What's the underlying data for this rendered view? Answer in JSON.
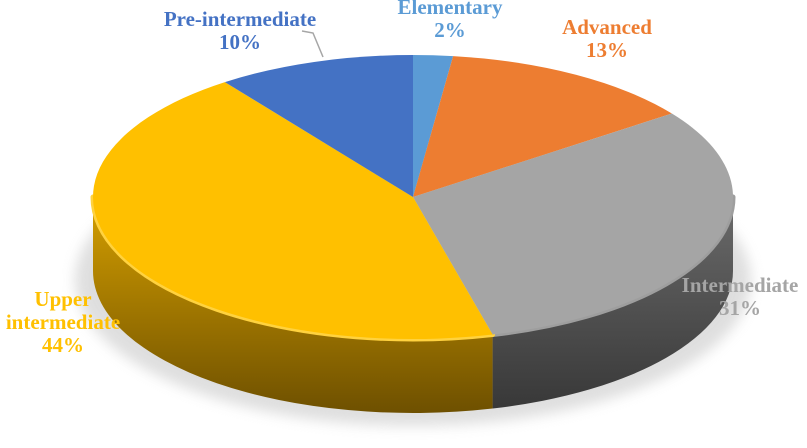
{
  "chart_data": {
    "type": "pie",
    "title": "",
    "style": "3d",
    "start_angle_deg": 0,
    "direction": "clockwise",
    "legend": "none",
    "background": "#FFFFFF",
    "label_format": "name + percent",
    "categories": [
      "Elementary",
      "Advanced",
      "Intermediate",
      "Upper intermediate",
      "Pre-intermediate"
    ],
    "values": [
      2,
      13,
      31,
      44,
      10
    ],
    "slices": [
      {
        "label": "Elementary",
        "value": 2,
        "pct_label": "2%",
        "color": "#5B9BD5",
        "side_top": "#4A7EAE",
        "side_bottom": "#2F5170",
        "rim": "#7FB2DE"
      },
      {
        "label": "Advanced",
        "value": 13,
        "pct_label": "13%",
        "color": "#ED7D31",
        "side_top": "#C26018",
        "side_bottom": "#7E3E10",
        "rim": "#F19659"
      },
      {
        "label": "Intermediate",
        "value": 31,
        "pct_label": "31%",
        "color": "#A5A5A5",
        "side_top": "#6B6B6B",
        "side_bottom": "#383838",
        "rim": "#9E9E9E"
      },
      {
        "label": "Upper intermediate",
        "value": 44,
        "pct_label": "44%",
        "color": "#FFC000",
        "side_top": "#D6A000",
        "side_bottom": "#6E5000",
        "rim": "#FFD23F"
      },
      {
        "label": "Pre-intermediate",
        "value": 10,
        "pct_label": "10%",
        "color": "#4472C4",
        "side_top": "#35599B",
        "side_bottom": "#22395F",
        "rim": "#6A93D6"
      }
    ],
    "leader_line_color": "#A6A6A6",
    "shadow_color": "#B8B8B8"
  }
}
